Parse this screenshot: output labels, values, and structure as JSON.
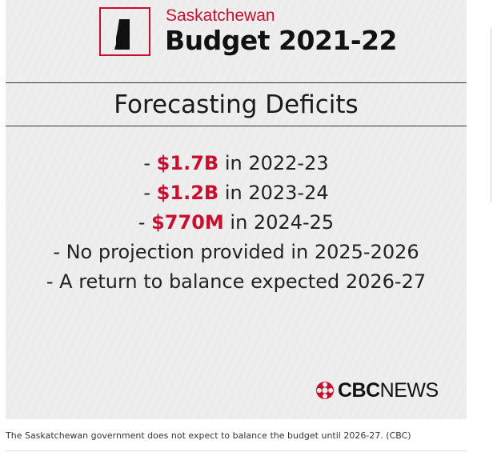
{
  "graphic": {
    "province": "Saskatchewan",
    "title": "Budget 2021-22",
    "heading": "Forecasting Deficits",
    "items": [
      {
        "prefix": "- ",
        "amount": "$1.7B",
        "suffix": " in 2022-23"
      },
      {
        "prefix": "- ",
        "amount": "$1.2B",
        "suffix": " in 2023-24"
      },
      {
        "prefix": "- ",
        "amount": "$770M",
        "suffix": " in 2024-25"
      },
      {
        "prefix": "",
        "amount": "",
        "suffix": "- No projection provided in 2025-2026"
      },
      {
        "prefix": "",
        "amount": "",
        "suffix": "- A return to balance expected 2026-27"
      }
    ],
    "brand_bold": "CBC",
    "brand_light": "NEWS",
    "accent_color": "#c8102e",
    "logo_icon": "saskatchewan-map-icon",
    "brand_icon": "cbc-gem-icon"
  },
  "caption": "The Saskatchewan government does not expect to balance the budget until 2026-27. (CBC)"
}
